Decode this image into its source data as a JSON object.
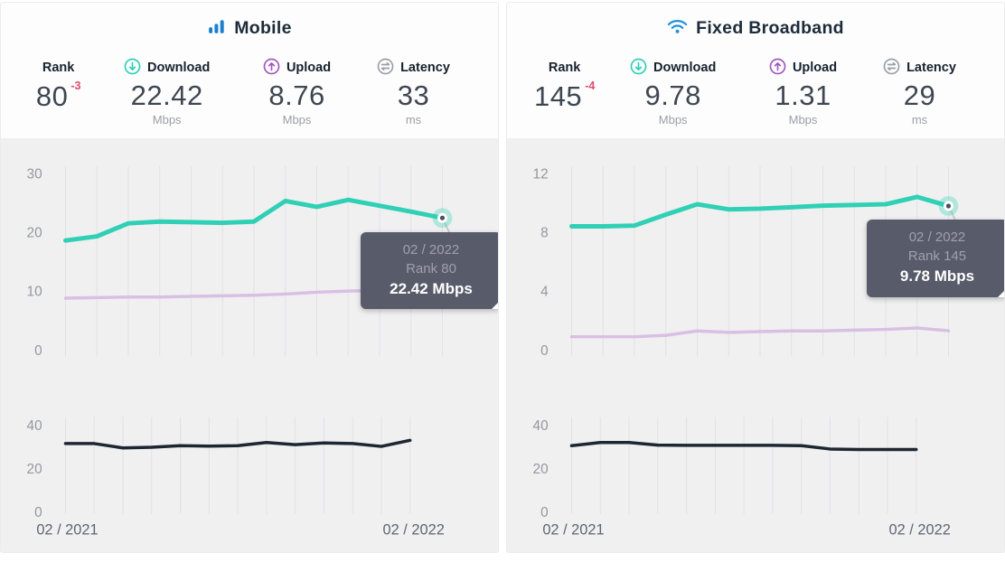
{
  "colors": {
    "bars_icon_blue": "#1b7fd0",
    "wifi_icon_blue": "#2492d8",
    "download_line": "#2fd0b5",
    "upload_line": "#d9bfe4",
    "latency_line": "#1d2633",
    "gridline": "#e2e2e5",
    "axis_label": "#93989f",
    "date_label": "#5c6672",
    "connector": "#c9cacd",
    "marker_center": "#4a4f5e",
    "tooltip_bg": "#585c6a",
    "tooltip_muted": "#9ea0ab",
    "tooltip_text": "#ffffff",
    "delta_red": "#e14b6f",
    "title_text": "#1d2b3a",
    "stat_value": "#3e4751",
    "unit_text": "#9aa0a8",
    "latency_icon_gray": "#9aa0a8",
    "upload_icon_purple": "#a158c0",
    "card_chart_bg": "#f0f0f1",
    "card_header_bg": "#fdfdfd"
  },
  "panels": [
    {
      "title": "Mobile",
      "stats": {
        "rank": {
          "label": "Rank",
          "value": "80",
          "delta": "-3"
        },
        "download": {
          "label": "Download",
          "value": "22.42",
          "unit": "Mbps"
        },
        "upload": {
          "label": "Upload",
          "value": "8.76",
          "unit": "Mbps"
        },
        "latency": {
          "label": "Latency",
          "value": "33",
          "unit": "ms"
        }
      },
      "tooltip": {
        "date": "02 / 2022",
        "rank": "Rank 80",
        "value": "22.42 Mbps"
      }
    },
    {
      "title": "Fixed Broadband",
      "stats": {
        "rank": {
          "label": "Rank",
          "value": "145",
          "delta": "-4"
        },
        "download": {
          "label": "Download",
          "value": "9.78",
          "unit": "Mbps"
        },
        "upload": {
          "label": "Upload",
          "value": "1.31",
          "unit": "Mbps"
        },
        "latency": {
          "label": "Latency",
          "value": "29",
          "unit": "ms"
        }
      },
      "tooltip": {
        "date": "02 / 2022",
        "rank": "Rank 145",
        "value": "9.78 Mbps"
      }
    }
  ],
  "chart_data": [
    {
      "id": "mobile-speed",
      "type": "line",
      "x_start_label": "02 / 2021",
      "x_end_label": "02 / 2022",
      "points": 13,
      "ylim": [
        0,
        30
      ],
      "yticks": [
        0,
        10,
        20,
        30
      ],
      "grid": "vertical-only",
      "legend": "none",
      "series": [
        {
          "name": "Download (Mbps)",
          "color_key": "download_line",
          "values": [
            18.6,
            19.3,
            21.5,
            21.8,
            21.7,
            21.6,
            21.8,
            25.3,
            24.3,
            25.5,
            24.5,
            23.5,
            22.42
          ]
        },
        {
          "name": "Upload (Mbps)",
          "color_key": "upload_line",
          "values": [
            8.8,
            8.9,
            9.0,
            9.0,
            9.1,
            9.2,
            9.3,
            9.5,
            9.8,
            10.0,
            10.1,
            9.4,
            8.76
          ]
        }
      ],
      "marker_on_last_point": true
    },
    {
      "id": "mobile-latency",
      "type": "line",
      "x_start_label": "02 / 2021",
      "x_end_label": "02 / 2022",
      "points": 13,
      "ylim": [
        0,
        40
      ],
      "yticks": [
        0,
        20,
        40
      ],
      "grid": "vertical-only",
      "legend": "none",
      "series": [
        {
          "name": "Latency (ms)",
          "color_key": "latency_line",
          "values": [
            31.5,
            31.5,
            29.5,
            29.8,
            30.5,
            30.3,
            30.5,
            32,
            31,
            31.8,
            31.5,
            30.2,
            33
          ]
        }
      ],
      "marker_on_last_point": false
    },
    {
      "id": "fixed-speed",
      "type": "line",
      "x_start_label": "02 / 2021",
      "x_end_label": "02 / 2022",
      "points": 13,
      "ylim": [
        0,
        12
      ],
      "yticks": [
        0,
        4,
        8,
        12
      ],
      "grid": "vertical-only",
      "legend": "none",
      "series": [
        {
          "name": "Download (Mbps)",
          "color_key": "download_line",
          "values": [
            8.4,
            8.4,
            8.45,
            9.2,
            9.9,
            9.55,
            9.6,
            9.7,
            9.8,
            9.85,
            9.9,
            10.4,
            9.78
          ]
        },
        {
          "name": "Upload (Mbps)",
          "color_key": "upload_line",
          "values": [
            0.9,
            0.9,
            0.9,
            1.0,
            1.3,
            1.2,
            1.25,
            1.3,
            1.3,
            1.35,
            1.4,
            1.5,
            1.31
          ]
        }
      ],
      "marker_on_last_point": true
    },
    {
      "id": "fixed-latency",
      "type": "line",
      "x_start_label": "02 / 2021",
      "x_end_label": "02 / 2022",
      "points": 13,
      "ylim": [
        0,
        40
      ],
      "yticks": [
        0,
        20,
        40
      ],
      "grid": "vertical-only",
      "legend": "none",
      "series": [
        {
          "name": "Latency (ms)",
          "color_key": "latency_line",
          "values": [
            30.5,
            32,
            32,
            30.8,
            30.7,
            30.7,
            30.7,
            30.7,
            30.5,
            29,
            28.8,
            28.8,
            28.8
          ]
        }
      ],
      "marker_on_last_point": false
    }
  ]
}
